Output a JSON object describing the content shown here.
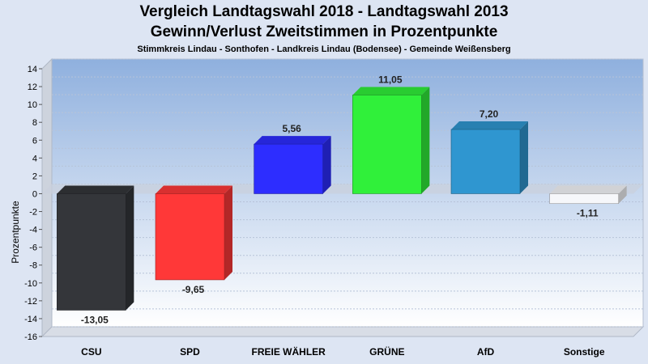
{
  "chart_data": {
    "type": "bar",
    "title": "Vergleich Landtagswahl 2018 - Landtagswahl 2013",
    "subtitle": "Gewinn/Verlust Zweitstimmen in Prozentpunkte",
    "subtitle2": "Stimmkreis Lindau - Sonthofen - Landkreis Lindau (Bodensee) - Gemeinde Weißensberg",
    "ylabel": "Prozentpunkte",
    "ylim": [
      -16,
      14
    ],
    "yticks": [
      "14",
      "12",
      "10",
      "8",
      "6",
      "4",
      "2",
      "0",
      "-2",
      "-4",
      "-6",
      "-8",
      "-10",
      "-12",
      "-14",
      "-16"
    ],
    "categories": [
      "CSU",
      "SPD",
      "FREIE WÄHLER",
      "GRÜNE",
      "AfD",
      "Sonstige"
    ],
    "values": [
      -13.05,
      -9.65,
      5.56,
      11.05,
      7.2,
      -1.11
    ],
    "value_labels": [
      "-13,05",
      "-9,65",
      "5,56",
      "11,05",
      "7,20",
      "-1,11"
    ],
    "colors": [
      "#34363a",
      "#ff3838",
      "#2d2dff",
      "#30f03a",
      "#2f96d0",
      "#f6f7fa"
    ],
    "grid": true
  }
}
